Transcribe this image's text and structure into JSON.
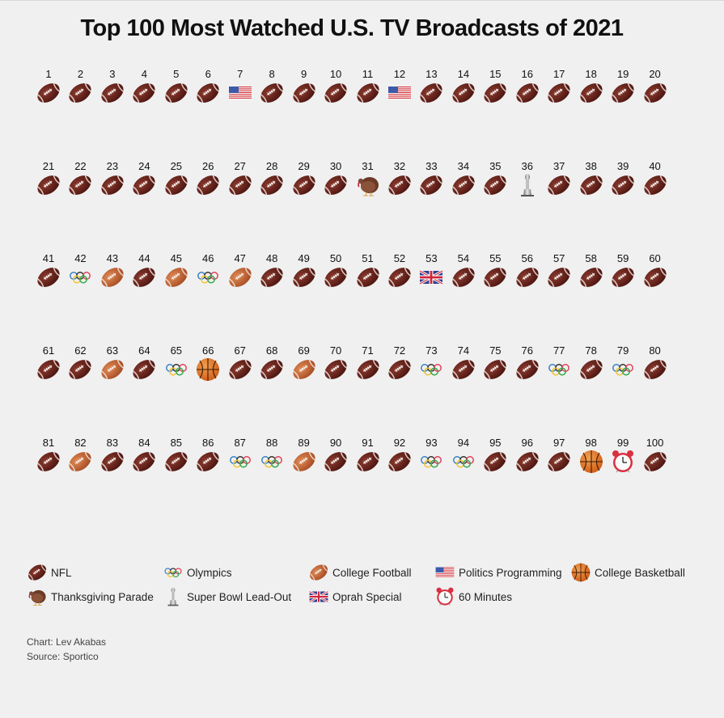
{
  "chart_data": {
    "type": "table",
    "title": "Top 100 Most Watched U.S. TV Broadcasts of 2021",
    "layout": "pictogram grid, 20 columns x 5 rows, ranked 1-100",
    "categories": [
      {
        "key": "N",
        "label": "NFL",
        "icon": "american-football-icon"
      },
      {
        "key": "O",
        "label": "Olympics",
        "icon": "olympic-rings-icon"
      },
      {
        "key": "C",
        "label": "College Football",
        "icon": "college-football-icon"
      },
      {
        "key": "P",
        "label": "Politics Programming",
        "icon": "us-flag-icon"
      },
      {
        "key": "B",
        "label": "College Basketball",
        "icon": "basketball-icon"
      },
      {
        "key": "T",
        "label": "Thanksgiving Parade",
        "icon": "turkey-icon"
      },
      {
        "key": "S",
        "label": "Super Bowl Lead-Out",
        "icon": "trophy-icon"
      },
      {
        "key": "U",
        "label": "Oprah Special",
        "icon": "uk-flag-icon"
      },
      {
        "key": "M",
        "label": "60 Minutes",
        "icon": "alarm-clock-icon"
      }
    ],
    "ranks": [
      1,
      2,
      3,
      4,
      5,
      6,
      7,
      8,
      9,
      10,
      11,
      12,
      13,
      14,
      15,
      16,
      17,
      18,
      19,
      20,
      21,
      22,
      23,
      24,
      25,
      26,
      27,
      28,
      29,
      30,
      31,
      32,
      33,
      34,
      35,
      36,
      37,
      38,
      39,
      40,
      41,
      42,
      43,
      44,
      45,
      46,
      47,
      48,
      49,
      50,
      51,
      52,
      53,
      54,
      55,
      56,
      57,
      58,
      59,
      60,
      61,
      62,
      63,
      64,
      65,
      66,
      67,
      68,
      69,
      70,
      71,
      72,
      73,
      74,
      75,
      76,
      77,
      78,
      79,
      80,
      81,
      82,
      83,
      84,
      85,
      86,
      87,
      88,
      89,
      90,
      91,
      92,
      93,
      94,
      95,
      96,
      97,
      98,
      99,
      100
    ],
    "values": [
      "N",
      "N",
      "N",
      "N",
      "N",
      "N",
      "P",
      "N",
      "N",
      "N",
      "N",
      "P",
      "N",
      "N",
      "N",
      "N",
      "N",
      "N",
      "N",
      "N",
      "N",
      "N",
      "N",
      "N",
      "N",
      "N",
      "N",
      "N",
      "N",
      "N",
      "T",
      "N",
      "N",
      "N",
      "N",
      "S",
      "N",
      "N",
      "N",
      "N",
      "N",
      "O",
      "C",
      "N",
      "C",
      "O",
      "C",
      "N",
      "N",
      "N",
      "N",
      "N",
      "U",
      "N",
      "N",
      "N",
      "N",
      "N",
      "N",
      "N",
      "N",
      "N",
      "C",
      "N",
      "O",
      "B",
      "N",
      "N",
      "C",
      "N",
      "N",
      "N",
      "O",
      "N",
      "N",
      "N",
      "O",
      "N",
      "O",
      "N",
      "N",
      "C",
      "N",
      "N",
      "N",
      "N",
      "O",
      "O",
      "C",
      "N",
      "N",
      "N",
      "O",
      "O",
      "N",
      "N",
      "N",
      "B",
      "M",
      "N"
    ],
    "legend_order": [
      "N",
      "O",
      "C",
      "P",
      "B",
      "T",
      "S",
      "U",
      "M"
    ],
    "legend_position": "bottom"
  },
  "credits": {
    "chart_by": "Chart: Lev Akabas",
    "source": "Source: Sportico"
  }
}
